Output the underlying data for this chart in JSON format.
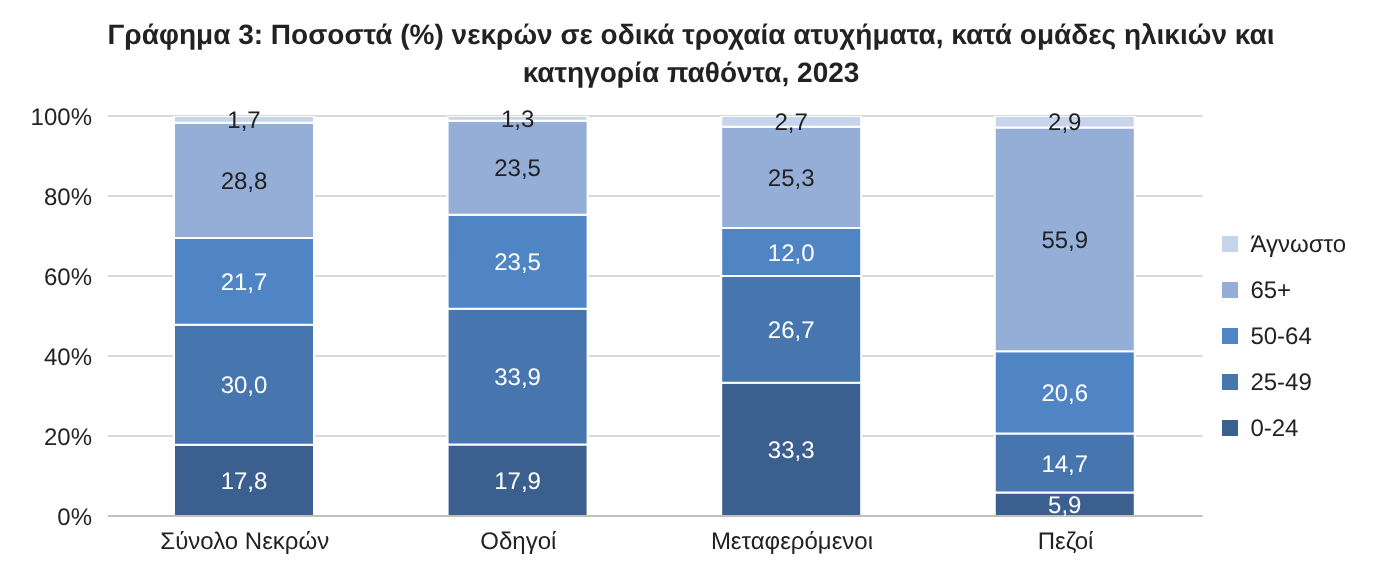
{
  "chart_data": {
    "type": "bar",
    "title": "Γράφημα 3: Ποσοστά (%) νεκρών σε οδικά τροχαία ατυχήματα, κατά ομάδες ηλικιών και κατηγορία παθόντα, 2023",
    "categories": [
      "Σύνολο Νεκρών",
      "Οδηγοί",
      "Μεταφερόμενοι",
      "Πεζοί"
    ],
    "stacked": true,
    "series": [
      {
        "name": "0-24",
        "color": "#3b5f8f",
        "values": [
          17.8,
          17.9,
          33.3,
          5.9
        ],
        "value_labels": [
          "17,8",
          "17,9",
          "33,3",
          "5,9"
        ]
      },
      {
        "name": "25-49",
        "color": "#4775ad",
        "values": [
          30.0,
          33.9,
          26.7,
          14.7
        ],
        "value_labels": [
          "30,0",
          "33,9",
          "26,7",
          "14,7"
        ]
      },
      {
        "name": "50-64",
        "color": "#4f85c4",
        "values": [
          21.7,
          23.5,
          12.0,
          20.6
        ],
        "value_labels": [
          "21,7",
          "23,5",
          "12,0",
          "20,6"
        ]
      },
      {
        "name": "65+",
        "color": "#95aed8",
        "values": [
          28.8,
          23.5,
          25.3,
          55.9
        ],
        "value_labels": [
          "28,8",
          "23,5",
          "25,3",
          "55,9"
        ]
      },
      {
        "name": "Άγνωστο",
        "color": "#c6d4ec",
        "values": [
          1.7,
          1.3,
          2.7,
          2.9
        ],
        "value_labels": [
          "1,7",
          "1,3",
          "2,7",
          "2,9"
        ]
      }
    ],
    "ylim": [
      0,
      100
    ],
    "yticks": [
      {
        "value": 0,
        "label": "0%"
      },
      {
        "value": 20,
        "label": "20%"
      },
      {
        "value": 40,
        "label": "40%"
      },
      {
        "value": 60,
        "label": "60%"
      },
      {
        "value": 80,
        "label": "80%"
      },
      {
        "value": 100,
        "label": "100%"
      }
    ],
    "grid": "y",
    "legend": "right"
  }
}
